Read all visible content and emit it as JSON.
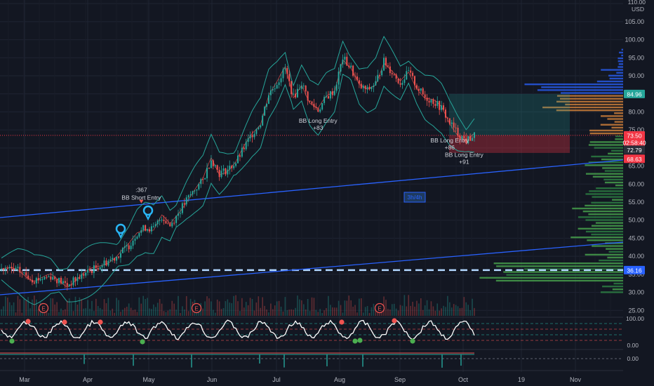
{
  "chart_data": {
    "type": "candlestick",
    "currency": "USD",
    "y_ticks": [
      25,
      30,
      35,
      40,
      45,
      50,
      55,
      60,
      65,
      70,
      75,
      80,
      85,
      90,
      95,
      100,
      105,
      110
    ],
    "y_top_label": "110.00",
    "ylim": [
      23.5,
      111
    ],
    "x_labels": [
      "Mar",
      "Apr",
      "May",
      "Jun",
      "Jul",
      "Aug",
      "Sep",
      "Oct",
      "19",
      "Nov"
    ],
    "price_path": [
      {
        "t": 0,
        "v": 36.5
      },
      {
        "t": 8,
        "v": 36.0
      },
      {
        "t": 16,
        "v": 33.5
      },
      {
        "t": 24,
        "v": 34.5
      },
      {
        "t": 32,
        "v": 32.0
      },
      {
        "t": 40,
        "v": 35.0
      },
      {
        "t": 48,
        "v": 37.5
      },
      {
        "t": 56,
        "v": 40.0
      },
      {
        "t": 62,
        "v": 43.0
      },
      {
        "t": 66,
        "v": 46.5
      },
      {
        "t": 70,
        "v": 48.0
      },
      {
        "t": 74,
        "v": 47.5
      },
      {
        "t": 78,
        "v": 51.0
      },
      {
        "t": 82,
        "v": 48.5
      },
      {
        "t": 86,
        "v": 52.0
      },
      {
        "t": 90,
        "v": 55.5
      },
      {
        "t": 94,
        "v": 58.5
      },
      {
        "t": 98,
        "v": 61.0
      },
      {
        "t": 102,
        "v": 67.0
      },
      {
        "t": 106,
        "v": 63.0
      },
      {
        "t": 110,
        "v": 64.0
      },
      {
        "t": 114,
        "v": 66.0
      },
      {
        "t": 118,
        "v": 70.0
      },
      {
        "t": 122,
        "v": 74.0
      },
      {
        "t": 126,
        "v": 77.0
      },
      {
        "t": 130,
        "v": 85.0
      },
      {
        "t": 134,
        "v": 88.0
      },
      {
        "t": 138,
        "v": 92.0
      },
      {
        "t": 142,
        "v": 84.0
      },
      {
        "t": 146,
        "v": 88.0
      },
      {
        "t": 150,
        "v": 82.5
      },
      {
        "t": 154,
        "v": 80.5
      },
      {
        "t": 158,
        "v": 84.0
      },
      {
        "t": 162,
        "v": 86.0
      },
      {
        "t": 166,
        "v": 95.0
      },
      {
        "t": 170,
        "v": 92.0
      },
      {
        "t": 174,
        "v": 87.0
      },
      {
        "t": 178,
        "v": 86.0
      },
      {
        "t": 182,
        "v": 88.0
      },
      {
        "t": 186,
        "v": 94.0
      },
      {
        "t": 190,
        "v": 91.0
      },
      {
        "t": 194,
        "v": 88.0
      },
      {
        "t": 198,
        "v": 91.0
      },
      {
        "t": 202,
        "v": 87.0
      },
      {
        "t": 206,
        "v": 84.0
      },
      {
        "t": 210,
        "v": 83.0
      },
      {
        "t": 214,
        "v": 81.0
      },
      {
        "t": 218,
        "v": 77.0
      },
      {
        "t": 222,
        "v": 74.0
      },
      {
        "t": 226,
        "v": 72.0
      },
      {
        "t": 230,
        "v": 73.5
      }
    ],
    "annotations": [
      {
        "text": "BB Long Entry",
        "sub": "+83",
        "type": "long",
        "t": 154,
        "v": 80.5
      },
      {
        "text": "BB Long Entry",
        "sub": "+86",
        "type": "long",
        "t": 218,
        "v": 75.0
      },
      {
        "text": "BB Long Entry",
        "sub": "+91",
        "type": "long",
        "t": 225,
        "v": 71.0
      },
      {
        "text": "BB Short Entry",
        "sub": ":367",
        "type": "short",
        "t": 66,
        "v": 53.5
      }
    ],
    "price_labels": [
      {
        "value": "84.96",
        "v": 84.96,
        "color": "#26a69a"
      },
      {
        "value": "73.50",
        "v": 73.5,
        "color": "#f23645"
      },
      {
        "value": "02:58:40",
        "v": 71.5,
        "color": "#f23645"
      },
      {
        "value": "72.79",
        "v": 69.5,
        "color": "#2a2e39"
      },
      {
        "value": "68.63",
        "v": 67.0,
        "color": "#f23645"
      },
      {
        "value": "36.16",
        "v": 36.16,
        "color": "#2962ff"
      }
    ],
    "target_zone": {
      "top": 84.96,
      "entry": 73.5,
      "stop": 68.63
    },
    "dashed_level": 36.16,
    "box_label": "3h/4h",
    "event_markers": [
      "E",
      "E",
      "E"
    ],
    "osc_ticks": [
      "100.00",
      "0.00"
    ],
    "osc2_ticks": [
      "0.00"
    ],
    "colors": {
      "up": "#26a69a",
      "down": "#ef5350",
      "band": "#26a69a",
      "trend": "#2962ff",
      "bg": "#131722"
    }
  }
}
